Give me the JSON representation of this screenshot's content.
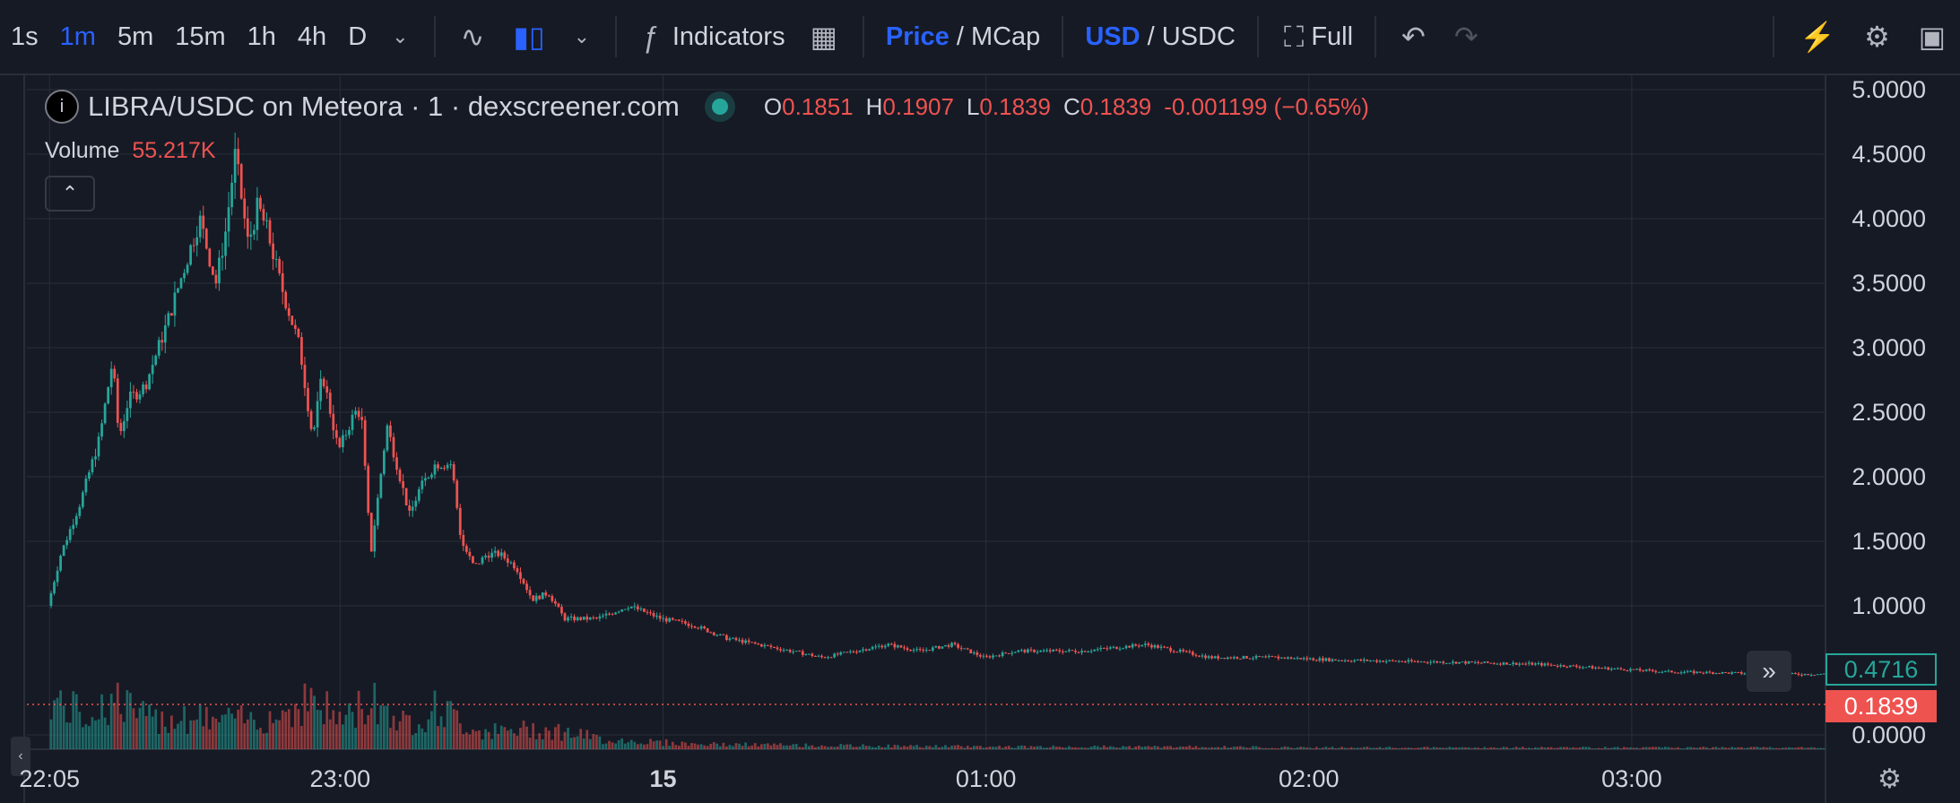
{
  "toolbar": {
    "intervals": [
      "1s",
      "1m",
      "5m",
      "15m",
      "1h",
      "4h",
      "D"
    ],
    "active_interval": "1m",
    "indicators_label": "Indicators",
    "price_label": "Price",
    "mcap_label": "MCap",
    "usd_label": "USD",
    "usdc_label": "USDC",
    "full_label": "Full",
    "separator": "/"
  },
  "legend": {
    "title": "LIBRA/USDC on Meteora · 1 · dexscreener.com",
    "o_label": "O",
    "o": "0.1851",
    "h_label": "H",
    "h": "0.1907",
    "l_label": "L",
    "l": "0.1839",
    "c_label": "C",
    "c": "0.1839",
    "change": "-0.001199 (−0.65%)",
    "volume_label": "Volume",
    "volume": "55.217K"
  },
  "price_tags": {
    "last_green": "0.4716",
    "current_red": "0.1839"
  },
  "colors": {
    "up": "#26a69a",
    "down": "#ef5350",
    "background": "#161a25",
    "grid": "#2a2e39",
    "accent": "#2962ff"
  },
  "chart_data": {
    "type": "candlestick",
    "y_ticks": [
      "5.0000",
      "4.5000",
      "4.0000",
      "3.5000",
      "3.0000",
      "2.5000",
      "2.0000",
      "1.5000",
      "1.0000",
      "0.0000"
    ],
    "ylim": [
      0,
      5.0
    ],
    "x_ticks": [
      "22:05",
      "23:00",
      "15",
      "01:00",
      "02:00",
      "03:00"
    ],
    "x_tick_hours": [
      0,
      0.9,
      1.9,
      2.9,
      3.9,
      4.9
    ],
    "x_range_hours": [
      -0.07,
      5.5
    ],
    "price_series": {
      "x_hours": [
        0,
        0.04,
        0.1,
        0.16,
        0.2,
        0.22,
        0.25,
        0.3,
        0.37,
        0.42,
        0.47,
        0.52,
        0.55,
        0.58,
        0.62,
        0.65,
        0.68,
        0.72,
        0.78,
        0.82,
        0.85,
        0.9,
        0.95,
        0.97,
        1.0,
        1.05,
        1.1,
        1.12,
        1.15,
        1.2,
        1.25,
        1.28,
        1.32,
        1.36,
        1.4,
        1.45,
        1.5,
        1.55,
        1.6,
        1.7,
        1.8,
        1.9,
        2.0,
        2.1,
        2.2,
        2.3,
        2.4,
        2.5,
        2.6,
        2.7,
        2.8,
        2.9,
        3.0,
        3.2,
        3.4,
        3.6,
        3.8,
        4.0,
        4.2,
        4.4,
        4.6,
        4.8,
        5.0,
        5.2,
        5.4,
        5.5
      ],
      "close": [
        1.0,
        1.4,
        1.8,
        2.3,
        2.9,
        2.3,
        2.6,
        2.7,
        3.2,
        3.6,
        4.0,
        3.5,
        3.9,
        4.5,
        3.8,
        4.1,
        3.9,
        3.5,
        3.0,
        2.3,
        2.8,
        2.2,
        2.5,
        2.5,
        1.4,
        2.4,
        1.9,
        1.7,
        1.9,
        2.1,
        2.1,
        1.5,
        1.3,
        1.4,
        1.4,
        1.3,
        1.05,
        1.1,
        0.9,
        0.9,
        1.0,
        0.9,
        0.85,
        0.75,
        0.7,
        0.65,
        0.6,
        0.65,
        0.7,
        0.65,
        0.7,
        0.6,
        0.65,
        0.65,
        0.7,
        0.6,
        0.6,
        0.58,
        0.57,
        0.56,
        0.55,
        0.52,
        0.49,
        0.48,
        0.47,
        0.4716
      ]
    },
    "volume_series": {
      "x_hours": [
        0,
        0.1,
        0.2,
        0.3,
        0.4,
        0.5,
        0.6,
        0.7,
        0.8,
        0.9,
        1.0,
        1.1,
        1.2,
        1.3,
        1.4,
        1.5,
        1.6,
        1.7,
        1.8,
        2.0,
        2.5,
        3.0,
        3.5,
        4.0,
        4.5,
        5.0,
        5.5
      ],
      "values": [
        0.6,
        0.4,
        0.6,
        0.35,
        0.4,
        0.35,
        0.35,
        0.4,
        0.6,
        0.35,
        0.6,
        0.3,
        0.5,
        0.25,
        0.2,
        0.25,
        0.2,
        0.12,
        0.1,
        0.06,
        0.04,
        0.03,
        0.03,
        0.02,
        0.02,
        0.02,
        0.02
      ]
    },
    "current_price": 0.1839,
    "last_price": 0.4716
  }
}
